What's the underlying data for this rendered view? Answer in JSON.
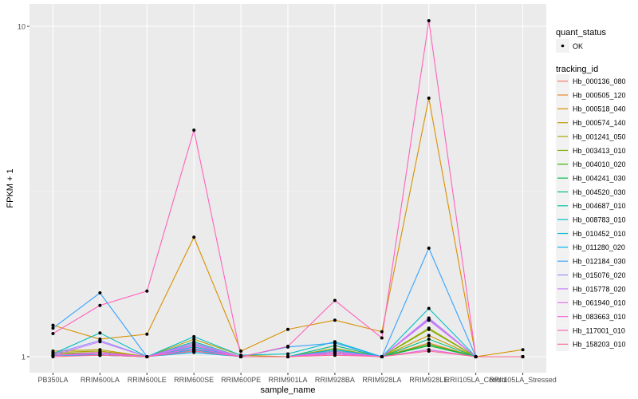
{
  "chart_data": {
    "type": "line",
    "xlabel": "sample_name",
    "ylabel": "FPKM + 1",
    "y_scale": "log10",
    "ylim": [
      0.93,
      11.5
    ],
    "y_ticks": [
      {
        "value": 1,
        "label": "1"
      },
      {
        "value": 10,
        "label": "10"
      }
    ],
    "grid": true,
    "legend_position": "right",
    "categories": [
      "PB350LA",
      "RRIM600LA",
      "RRIM600LE",
      "RRIM600SE",
      "RRIM600PE",
      "RRIM901LA",
      "RRIM928BA",
      "RRIM928LA",
      "RRIM928LE",
      "RRII105LA_Control",
      "RRII105LA_Stressed"
    ],
    "shape_legend": {
      "title": "quant_status",
      "entries": [
        "OK"
      ]
    },
    "color_legend_title": "tracking_id",
    "series": [
      {
        "name": "Hb_000136_080",
        "color": "#F8766D",
        "values": [
          1.01,
          1.02,
          1,
          1.04,
          1,
          1,
          1.02,
          1,
          1.08,
          1,
          1
        ]
      },
      {
        "name": "Hb_000505_120",
        "color": "#EA8331",
        "values": [
          1.02,
          1.03,
          1,
          1.05,
          1,
          1,
          1.03,
          1,
          1.1,
          1,
          1
        ]
      },
      {
        "name": "Hb_000518_040",
        "color": "#D89000",
        "values": [
          1.245,
          1.13,
          1.17,
          2.3,
          1.04,
          1.21,
          1.29,
          1.19,
          6.06,
          1,
          1.05
        ]
      },
      {
        "name": "Hb_000574_140",
        "color": "#C09B00",
        "values": [
          1.04,
          1.05,
          1,
          1.13,
          1.01,
          1,
          1.08,
          1,
          1.16,
          1,
          1
        ]
      },
      {
        "name": "Hb_001241_050",
        "color": "#A3A500",
        "values": [
          1.03,
          1.04,
          1,
          1.09,
          1,
          1,
          1.06,
          1,
          1.22,
          1,
          1
        ]
      },
      {
        "name": "Hb_003413_010",
        "color": "#7CAE00",
        "values": [
          1.02,
          1.03,
          1,
          1.08,
          1,
          1,
          1.05,
          1,
          1.21,
          1,
          1
        ]
      },
      {
        "name": "Hb_004010_020",
        "color": "#39B600",
        "values": [
          1.01,
          1.02,
          1,
          1.05,
          1,
          1,
          1.04,
          1,
          1.09,
          1,
          1
        ]
      },
      {
        "name": "Hb_004241_030",
        "color": "#00BB4E",
        "values": [
          1.01,
          1.01,
          1,
          1.04,
          1,
          1,
          1.03,
          1,
          1.08,
          1,
          1
        ]
      },
      {
        "name": "Hb_004520_030",
        "color": "#00BF7D",
        "values": [
          1.01,
          1.02,
          1,
          1.06,
          1,
          1,
          1.04,
          1,
          1.13,
          1,
          1
        ]
      },
      {
        "name": "Hb_004687_010",
        "color": "#00C1A3",
        "values": [
          1.01,
          1.03,
          1,
          1.11,
          1,
          1,
          1.08,
          1,
          1.3,
          1,
          1
        ]
      },
      {
        "name": "Hb_008783_010",
        "color": "#00BFC4",
        "values": [
          1.02,
          1.18,
          1,
          1.15,
          1.01,
          1.02,
          1.11,
          1,
          1.4,
          1,
          1
        ]
      },
      {
        "name": "Hb_010452_010",
        "color": "#00BAE0",
        "values": [
          1.01,
          1.02,
          1,
          1.07,
          1,
          1,
          1.05,
          1,
          1.29,
          1,
          1
        ]
      },
      {
        "name": "Hb_011280_020",
        "color": "#00B0F6",
        "values": [
          1.01,
          1.01,
          1,
          1.03,
          1,
          1,
          1.02,
          1,
          1.05,
          1,
          1
        ]
      },
      {
        "name": "Hb_012184_030",
        "color": "#35A2FF",
        "values": [
          1.22,
          1.56,
          1,
          1.05,
          1,
          1.07,
          1.1,
          1,
          2.13,
          1,
          1
        ]
      },
      {
        "name": "Hb_015076_020",
        "color": "#9590FF",
        "values": [
          1.02,
          1.12,
          1,
          1.09,
          1,
          1,
          1.04,
          1,
          1.3,
          1,
          1
        ]
      },
      {
        "name": "Hb_015778_020",
        "color": "#C77CFF",
        "values": [
          1.01,
          1.11,
          1,
          1.1,
          1,
          1,
          1.03,
          1,
          1.31,
          1,
          1
        ]
      },
      {
        "name": "Hb_061940_010",
        "color": "#E76BF3",
        "values": [
          1.01,
          1.02,
          1,
          1.08,
          1,
          1,
          1.02,
          1,
          1.29,
          1,
          1
        ]
      },
      {
        "name": "Hb_083663_010",
        "color": "#FA62DB",
        "values": [
          1.01,
          1.03,
          1,
          1.06,
          1,
          1,
          1.03,
          1,
          1.05,
          1,
          1
        ]
      },
      {
        "name": "Hb_117001_010",
        "color": "#FF62BC",
        "values": [
          1.175,
          1.43,
          1.58,
          4.85,
          1,
          1.075,
          1.48,
          1.14,
          10.4,
          1,
          1
        ]
      },
      {
        "name": "Hb_158203_010",
        "color": "#FF6C91",
        "values": [
          1,
          1.01,
          1,
          1.04,
          1,
          1,
          1.01,
          1,
          1.04,
          1,
          1
        ]
      }
    ]
  }
}
